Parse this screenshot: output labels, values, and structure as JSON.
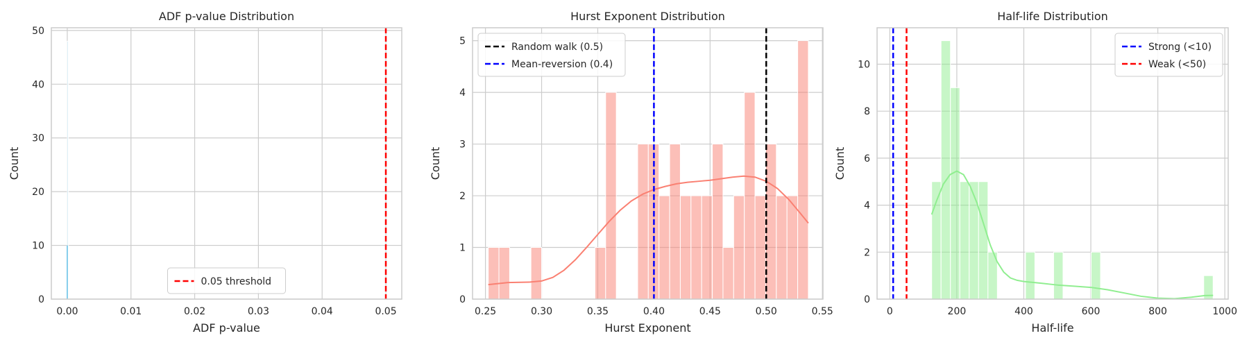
{
  "chart_data": [
    {
      "type": "histogram",
      "title": "ADF p-value Distribution",
      "xlabel": "ADF p-value",
      "ylabel": "Count",
      "xlim": [
        -0.0025,
        0.0525
      ],
      "ylim": [
        0,
        50.5
      ],
      "xticks": [
        0.0,
        0.01,
        0.02,
        0.03,
        0.04,
        0.05
      ],
      "xtick_labels": [
        "0.00",
        "0.01",
        "0.02",
        "0.03",
        "0.04",
        "0.05"
      ],
      "yticks": [
        0,
        10,
        20,
        30,
        40,
        50
      ],
      "grid": true,
      "color": "#87ceeb",
      "bins": [
        {
          "x0": 0.0,
          "x1": 0.0001,
          "count": 48
        }
      ],
      "kde": {
        "color": "#87ceeb",
        "points": [
          [
            0.0,
            10
          ],
          [
            0.0,
            0
          ]
        ]
      },
      "reference_lines": [
        {
          "label": "0.05 threshold",
          "x": 0.05,
          "color": "#ff0000"
        }
      ],
      "legend_position": "lower-center"
    },
    {
      "type": "histogram",
      "title": "Hurst Exponent Distribution",
      "xlabel": "Hurst Exponent",
      "ylabel": "Count",
      "xlim": [
        0.2385,
        0.5505
      ],
      "ylim": [
        0,
        5.25
      ],
      "xticks": [
        0.25,
        0.3,
        0.35,
        0.4,
        0.45,
        0.5,
        0.55
      ],
      "xtick_labels": [
        "0.25",
        "0.30",
        "0.35",
        "0.40",
        "0.45",
        "0.50",
        "0.55"
      ],
      "yticks": [
        0,
        1,
        2,
        3,
        4,
        5
      ],
      "grid": true,
      "color": "#fa8072",
      "bins": [
        {
          "x0": 0.2525,
          "x1": 0.262,
          "count": 1
        },
        {
          "x0": 0.262,
          "x1": 0.2715,
          "count": 1
        },
        {
          "x0": 0.2905,
          "x1": 0.3,
          "count": 1
        },
        {
          "x0": 0.3475,
          "x1": 0.357,
          "count": 1
        },
        {
          "x0": 0.357,
          "x1": 0.3665,
          "count": 4
        },
        {
          "x0": 0.3855,
          "x1": 0.395,
          "count": 3
        },
        {
          "x0": 0.395,
          "x1": 0.4045,
          "count": 3
        },
        {
          "x0": 0.4045,
          "x1": 0.414,
          "count": 2
        },
        {
          "x0": 0.414,
          "x1": 0.4235,
          "count": 3
        },
        {
          "x0": 0.4235,
          "x1": 0.433,
          "count": 2
        },
        {
          "x0": 0.433,
          "x1": 0.4425,
          "count": 2
        },
        {
          "x0": 0.4425,
          "x1": 0.452,
          "count": 2
        },
        {
          "x0": 0.452,
          "x1": 0.4615,
          "count": 3
        },
        {
          "x0": 0.4615,
          "x1": 0.471,
          "count": 1
        },
        {
          "x0": 0.471,
          "x1": 0.4805,
          "count": 2
        },
        {
          "x0": 0.4805,
          "x1": 0.49,
          "count": 4
        },
        {
          "x0": 0.49,
          "x1": 0.4995,
          "count": 2
        },
        {
          "x0": 0.4995,
          "x1": 0.509,
          "count": 3
        },
        {
          "x0": 0.509,
          "x1": 0.5185,
          "count": 2
        },
        {
          "x0": 0.5185,
          "x1": 0.528,
          "count": 2
        },
        {
          "x0": 0.528,
          "x1": 0.5375,
          "count": 5
        }
      ],
      "kde": {
        "color": "#fa8072",
        "points": [
          [
            0.2525,
            0.28
          ],
          [
            0.27,
            0.32
          ],
          [
            0.29,
            0.33
          ],
          [
            0.3,
            0.35
          ],
          [
            0.31,
            0.42
          ],
          [
            0.32,
            0.56
          ],
          [
            0.33,
            0.76
          ],
          [
            0.34,
            1.0
          ],
          [
            0.35,
            1.25
          ],
          [
            0.36,
            1.5
          ],
          [
            0.37,
            1.72
          ],
          [
            0.38,
            1.9
          ],
          [
            0.39,
            2.03
          ],
          [
            0.4,
            2.12
          ],
          [
            0.41,
            2.18
          ],
          [
            0.42,
            2.23
          ],
          [
            0.43,
            2.26
          ],
          [
            0.44,
            2.28
          ],
          [
            0.45,
            2.3
          ],
          [
            0.46,
            2.33
          ],
          [
            0.47,
            2.36
          ],
          [
            0.48,
            2.38
          ],
          [
            0.49,
            2.36
          ],
          [
            0.5,
            2.28
          ],
          [
            0.51,
            2.14
          ],
          [
            0.52,
            1.93
          ],
          [
            0.53,
            1.67
          ],
          [
            0.5375,
            1.47
          ]
        ]
      },
      "reference_lines": [
        {
          "label": "Random walk (0.5)",
          "x": 0.5,
          "color": "#000000"
        },
        {
          "label": "Mean-reversion (0.4)",
          "x": 0.4,
          "color": "#0000ff"
        }
      ],
      "legend_position": "upper-left"
    },
    {
      "type": "histogram",
      "title": "Half-life Distribution",
      "xlabel": "Half-life",
      "ylabel": "Count",
      "xlim": [
        -38,
        1010
      ],
      "ylim": [
        0,
        11.55
      ],
      "xticks": [
        0,
        200,
        400,
        600,
        800,
        1000
      ],
      "xtick_labels": [
        "0",
        "200",
        "400",
        "600",
        "800",
        "1000"
      ],
      "yticks": [
        0,
        2,
        4,
        6,
        8,
        10
      ],
      "grid": true,
      "color": "#90ee90",
      "bins": [
        {
          "x0": 125,
          "x1": 153,
          "count": 5
        },
        {
          "x0": 153,
          "x1": 181,
          "count": 11
        },
        {
          "x0": 181,
          "x1": 209,
          "count": 9
        },
        {
          "x0": 209,
          "x1": 237,
          "count": 5
        },
        {
          "x0": 237,
          "x1": 265,
          "count": 5
        },
        {
          "x0": 265,
          "x1": 293,
          "count": 5
        },
        {
          "x0": 293,
          "x1": 321,
          "count": 2
        },
        {
          "x0": 405,
          "x1": 433,
          "count": 2
        },
        {
          "x0": 489,
          "x1": 517,
          "count": 2
        },
        {
          "x0": 601,
          "x1": 629,
          "count": 2
        },
        {
          "x0": 937,
          "x1": 965,
          "count": 1
        }
      ],
      "kde": {
        "color": "#90ee90",
        "points": [
          [
            125,
            3.6
          ],
          [
            140,
            4.2
          ],
          [
            160,
            4.9
          ],
          [
            180,
            5.3
          ],
          [
            200,
            5.45
          ],
          [
            220,
            5.3
          ],
          [
            240,
            4.8
          ],
          [
            260,
            4.1
          ],
          [
            280,
            3.2
          ],
          [
            300,
            2.3
          ],
          [
            320,
            1.6
          ],
          [
            340,
            1.15
          ],
          [
            360,
            0.9
          ],
          [
            380,
            0.8
          ],
          [
            400,
            0.75
          ],
          [
            450,
            0.68
          ],
          [
            500,
            0.6
          ],
          [
            550,
            0.55
          ],
          [
            600,
            0.5
          ],
          [
            650,
            0.4
          ],
          [
            700,
            0.26
          ],
          [
            750,
            0.12
          ],
          [
            800,
            0.04
          ],
          [
            850,
            0.02
          ],
          [
            900,
            0.08
          ],
          [
            940,
            0.15
          ],
          [
            965,
            0.16
          ]
        ]
      },
      "reference_lines": [
        {
          "label": "Strong (<10)",
          "x": 10,
          "color": "#0000ff"
        },
        {
          "label": "Weak (<50)",
          "x": 50,
          "color": "#ff0000"
        }
      ],
      "legend_position": "upper-right"
    }
  ]
}
